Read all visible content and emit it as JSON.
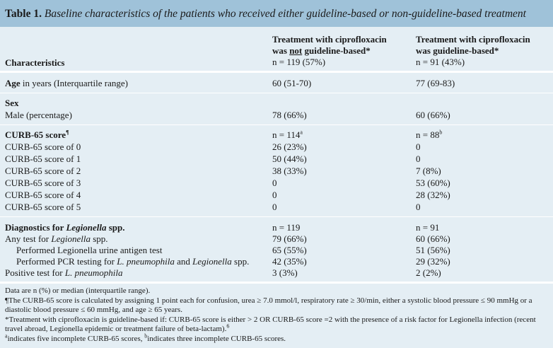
{
  "title": {
    "label": "Table 1.",
    "text": "Baseline characteristics of the patients who received either guideline-based or non-guideline-based treatment"
  },
  "header": {
    "characteristics": "Characteristics",
    "col2_line1": "Treatment with ciprofloxacin",
    "col2_line2_pre": "was ",
    "col2_line2_under": "not",
    "col2_line2_post": " guideline-based*",
    "col2_n": "n = 119 (57%)",
    "col3_line1": "Treatment with ciprofloxacin",
    "col3_line2": "was guideline-based*",
    "col3_n": "n = 91 (43%)"
  },
  "age": {
    "label_bold": "Age",
    "label_rest": " in years (Interquartile range)",
    "col2": "60 (51-70)",
    "col3": "77 (69-83)"
  },
  "sex": {
    "heading": "Sex",
    "male_label": "Male (percentage)",
    "col2": "78 (66%)",
    "col3": "60 (66%)"
  },
  "curb": {
    "heading": "CURB-65 score",
    "heading_sup": "¶",
    "n2": "n = 114",
    "n2_sup": "a",
    "n3": "n = 88",
    "n3_sup": "b",
    "rows": [
      {
        "label": "CURB-65 score of 0",
        "col2": "26 (23%)",
        "col3": "0"
      },
      {
        "label": "CURB-65 score of 1",
        "col2": "50 (44%)",
        "col3": "0"
      },
      {
        "label": "CURB-65 score of 2",
        "col2": "38 (33%)",
        "col3": "7 (8%)"
      },
      {
        "label": "CURB-65 score of 3",
        "col2": "0",
        "col3": "53 (60%)"
      },
      {
        "label": "CURB-65 score of 4",
        "col2": "0",
        "col3": "28 (32%)"
      },
      {
        "label": "CURB-65 score of 5",
        "col2": "0",
        "col3": "0"
      }
    ]
  },
  "diag": {
    "heading_pre": "Diagnostics for ",
    "heading_ital": "Legionella",
    "heading_post": " spp.",
    "n2": "n = 119",
    "n3": "n = 91",
    "any_pre": "Any test for ",
    "any_ital": "Legionella",
    "any_post": " spp.",
    "any_col2": "79 (66%)",
    "any_col3": "60 (66%)",
    "urine_label": "Performed Legionella urine antigen test",
    "urine_col2": "65 (55%)",
    "urine_col3": "51 (56%)",
    "pcr_pre": "Performed PCR testing for ",
    "pcr_ital1": "L. pneumophila",
    "pcr_mid": " and ",
    "pcr_ital2": "Legionella",
    "pcr_post": " spp.",
    "pcr_col2": "42 (35%)",
    "pcr_col3": "29 (32%)",
    "pos_pre": "Positive test for ",
    "pos_ital": "L. pneumophila",
    "pos_col2": "3 (3%)",
    "pos_col3": "2 (2%)"
  },
  "notes": {
    "n1": "Data are n (%) or median (interquartile range).",
    "n2": "¶The CURB-65 score is calculated by assigning 1 point each for confusion, urea ≥ 7.0 mmol/l, respiratory rate ≥ 30/min, either a systolic blood pressure ≤ 90 mmHg or a diastolic blood pressure ≤ 60 mmHg, and age ≥ 65 years.",
    "n3": "*Treatment with ciprofloxacin is guideline-based if: CURB-65 score is either > 2 OR CURB-65 score =2 with the presence of a risk factor for Legionella infection (recent travel abroad, Legionella epidemic or treatment failure of beta-lactam).",
    "n3_sup": "6",
    "n4_a_sup": "a",
    "n4_a": "indicates five incomplete CURB-65 scores, ",
    "n4_b_sup": "b",
    "n4_b": "indicates three incomplete CURB-65 scores."
  }
}
